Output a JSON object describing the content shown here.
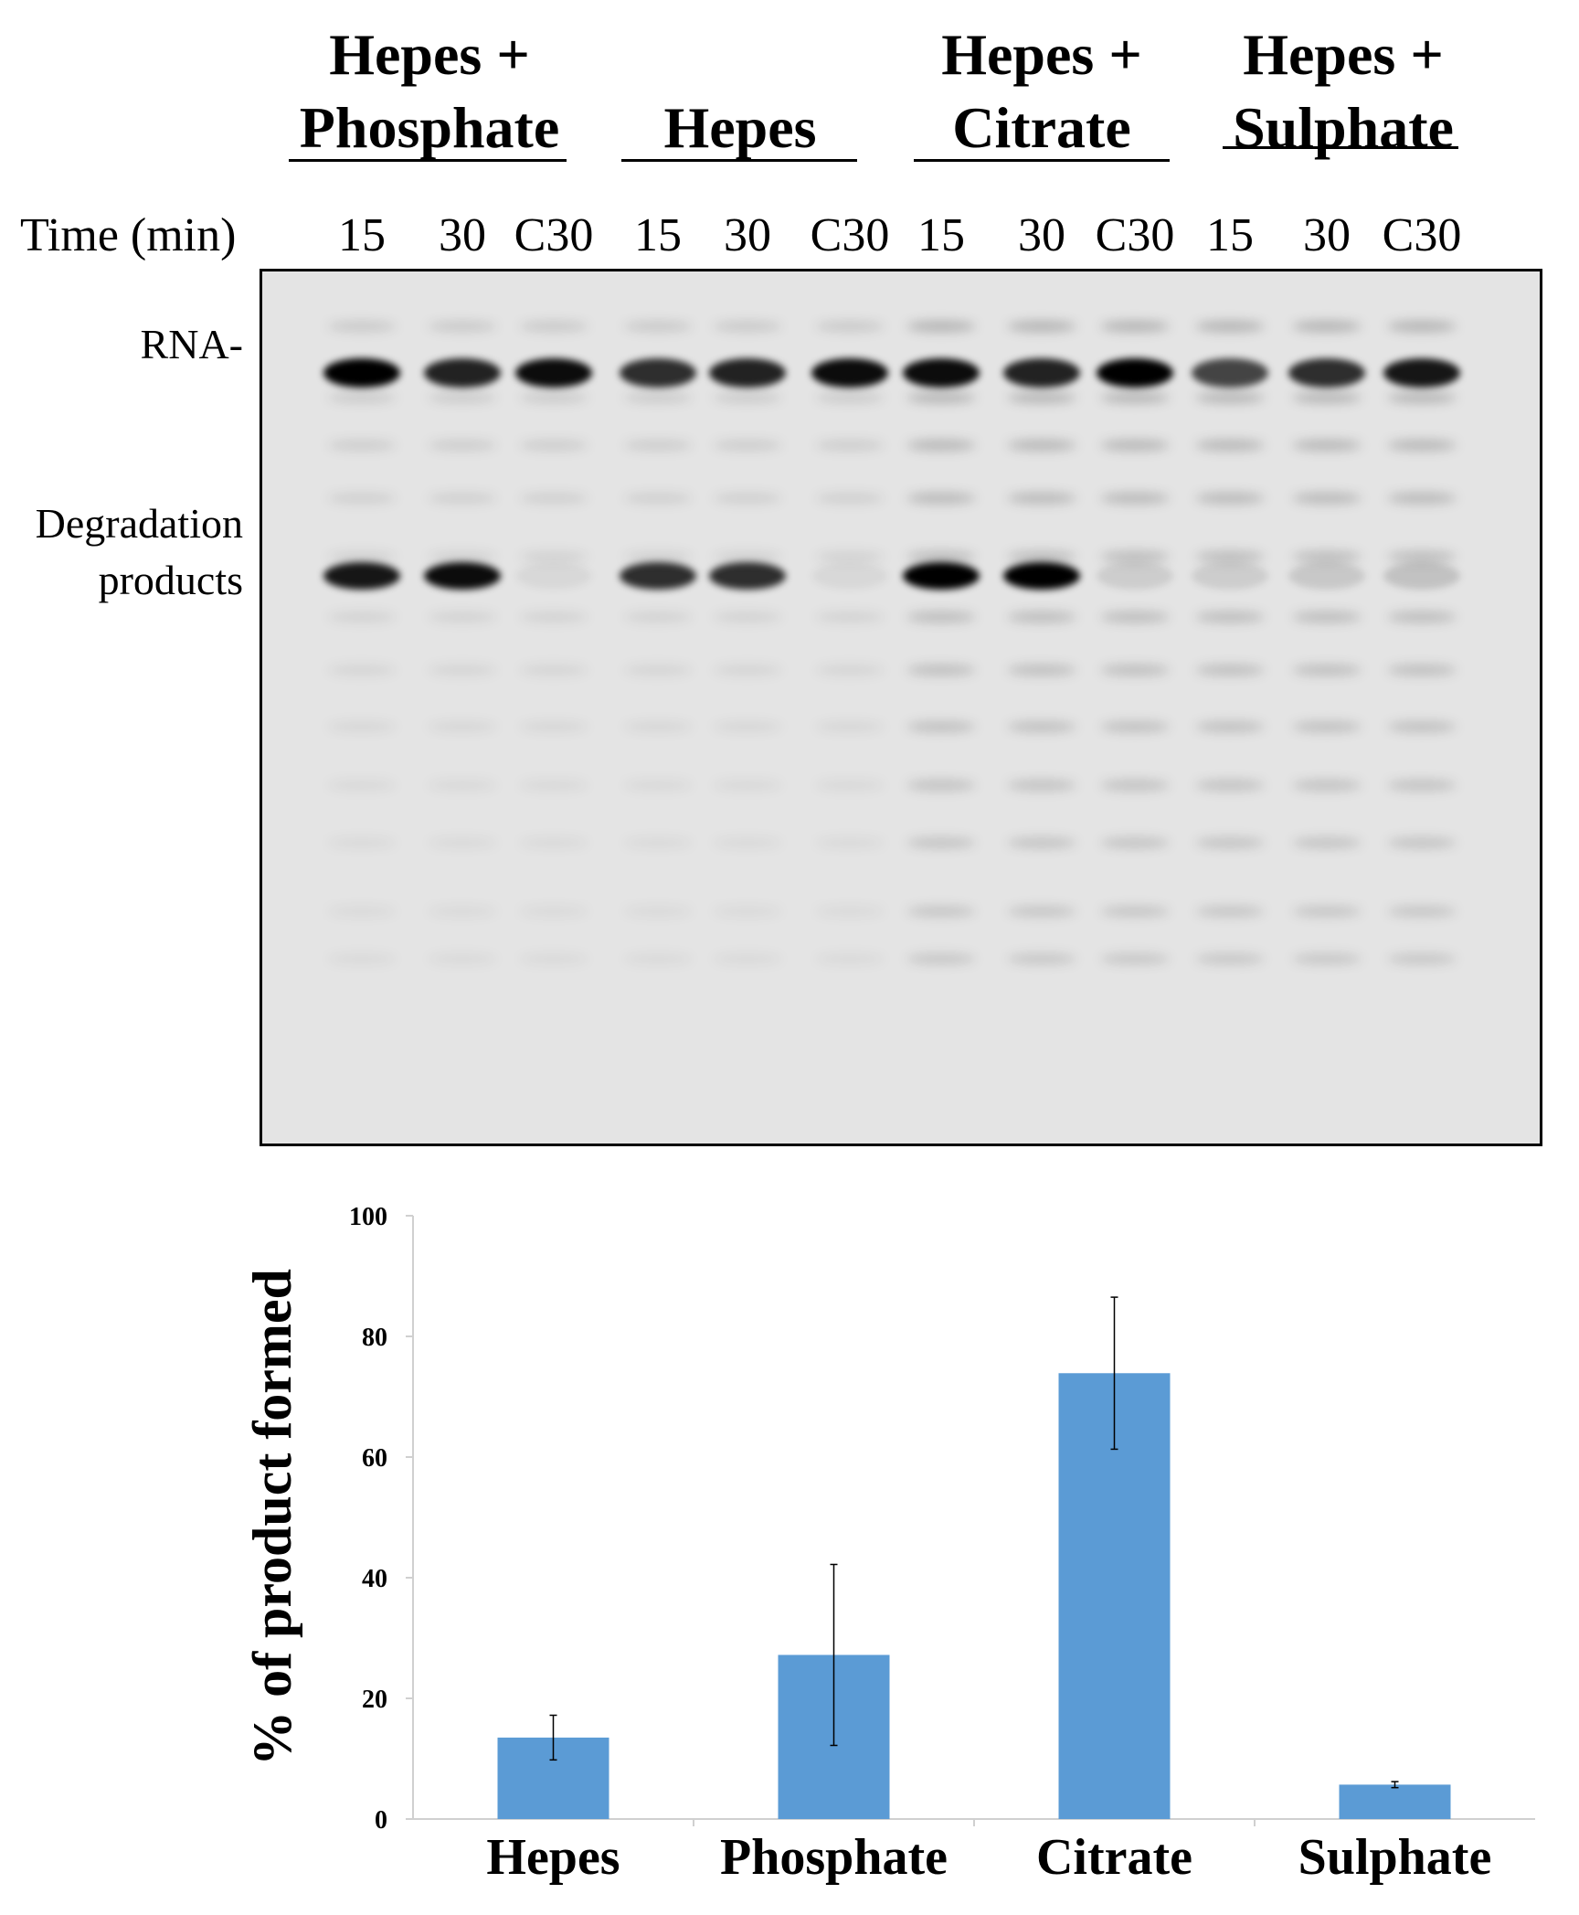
{
  "figure": {
    "gel": {
      "groups": [
        {
          "line1": "Hepes +",
          "line2": "Phosphate"
        },
        {
          "line1": "",
          "line2": "Hepes"
        },
        {
          "line1": "Hepes +",
          "line2": "Citrate"
        },
        {
          "line1": "Hepes +",
          "line2": "Sulphate"
        }
      ],
      "time_label": "Time (min)",
      "lane_labels": [
        "15",
        "30",
        "C30",
        "15",
        "30",
        "C30",
        "15",
        "30",
        "C30",
        "15",
        "30",
        "C30"
      ],
      "rna_label": "RNA-",
      "degradation_label_line1": "Degradation",
      "degradation_label_line2": "products",
      "rna_band_intensity": [
        1.0,
        0.85,
        0.95,
        0.8,
        0.85,
        0.95,
        0.95,
        0.85,
        1.0,
        0.7,
        0.8,
        0.9
      ],
      "product_band_intensity": [
        0.9,
        0.95,
        0.05,
        0.8,
        0.8,
        0.05,
        1.0,
        1.0,
        0.1,
        0.1,
        0.12,
        0.15
      ]
    }
  },
  "chart_data": {
    "type": "bar",
    "categories": [
      "Hepes",
      "Phosphate",
      "Citrate",
      "Sulphate"
    ],
    "values": [
      13.5,
      27.2,
      73.9,
      5.7
    ],
    "error": [
      3.7,
      15.0,
      12.6,
      0.5
    ],
    "ylabel": "% of product formed",
    "xlabel": "",
    "ylim": [
      0,
      100
    ],
    "yticks": [
      "0",
      "20",
      "40",
      "60",
      "80",
      "100"
    ],
    "bar_color": "#5b9bd5",
    "grid": false
  }
}
